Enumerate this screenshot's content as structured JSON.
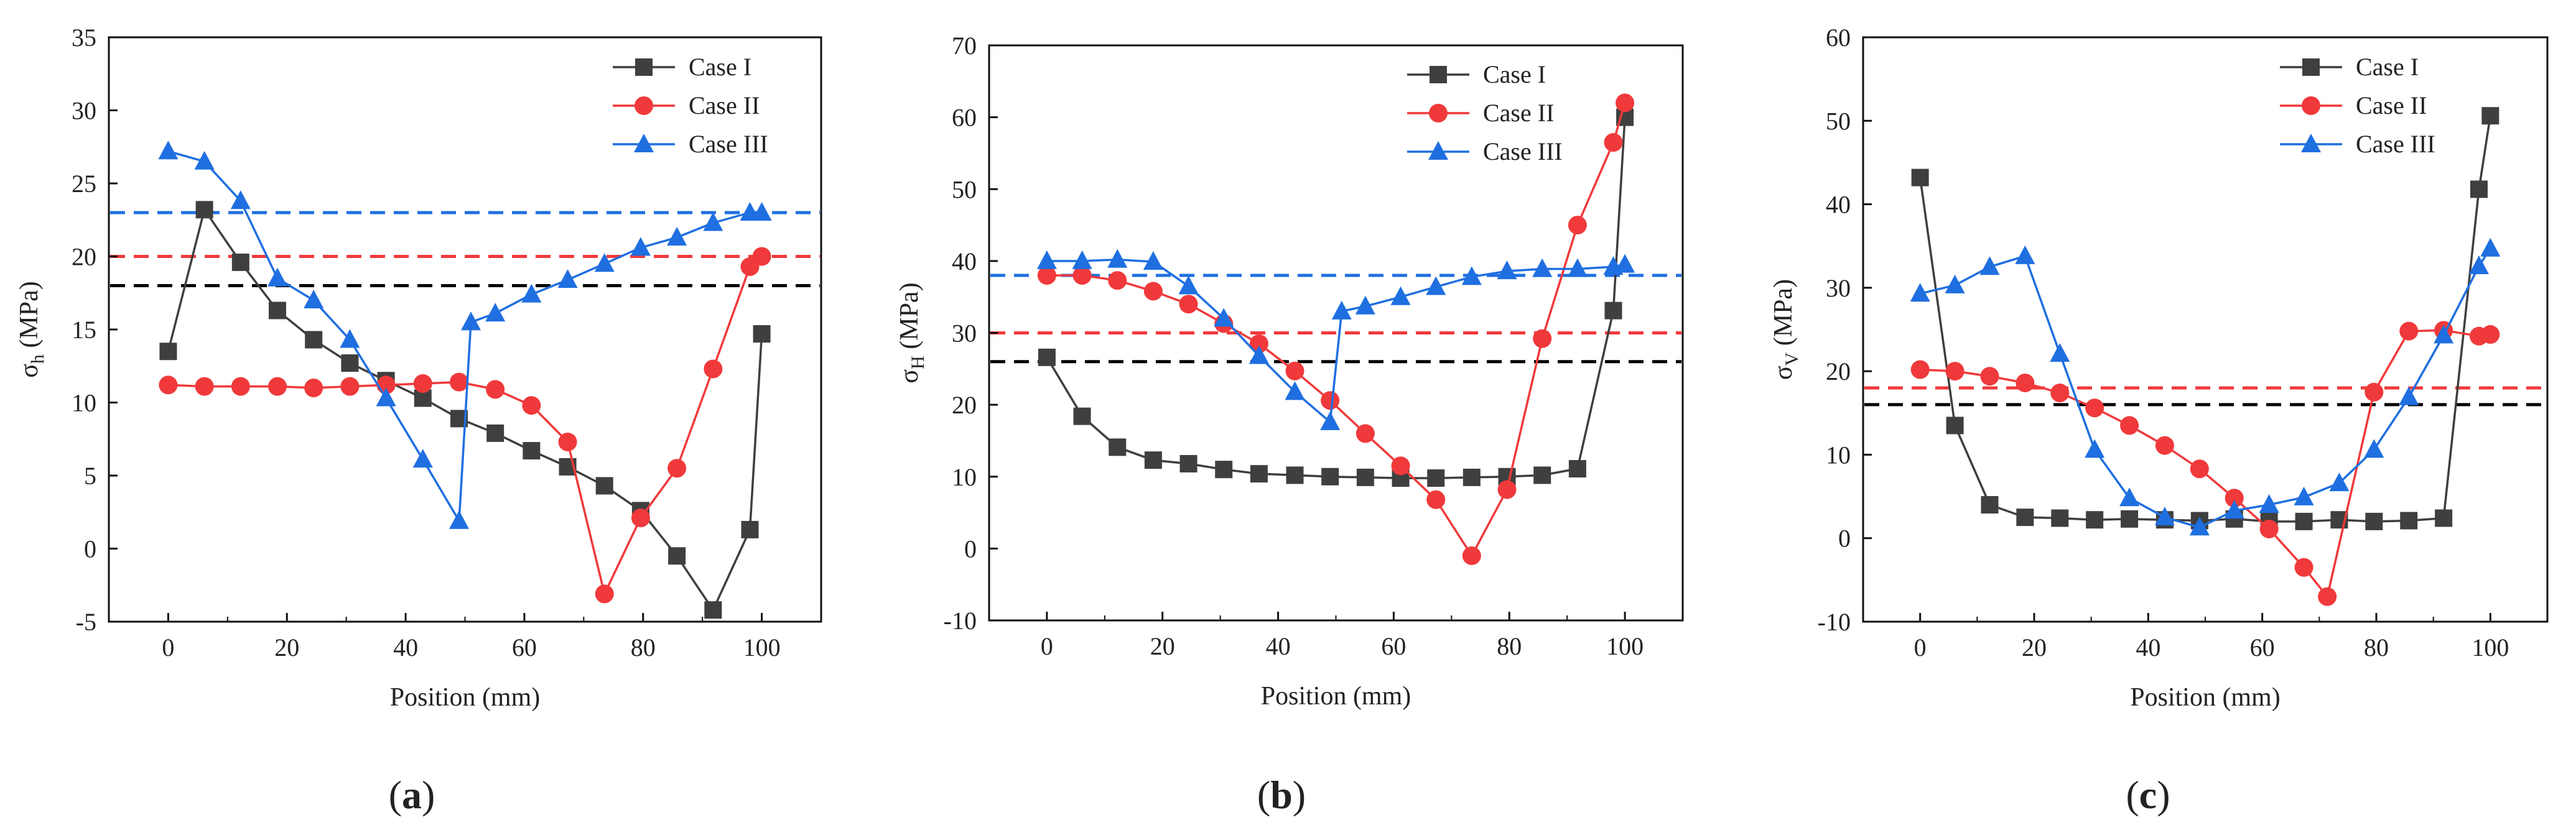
{
  "figure": {
    "panel_labels": [
      "a",
      "b",
      "c"
    ]
  },
  "chart_data": [
    {
      "type": "line",
      "panel": "a",
      "panel_label": "(a)",
      "xlabel": "Position (mm)",
      "ylabel_symbol": "σ",
      "ylabel_sub": "h",
      "ylabel_unit": "(MPa)",
      "xlim": [
        -10,
        110
      ],
      "ylim": [
        -5,
        35
      ],
      "xticks": [
        0,
        20,
        40,
        60,
        80,
        100
      ],
      "yticks": [
        -5,
        0,
        5,
        10,
        15,
        20,
        25,
        30,
        35
      ],
      "legend_position": "top-right",
      "series": [
        {
          "name": "Case I",
          "color": "#3f3f3f",
          "marker": "square",
          "x": [
            0,
            6.1,
            12.2,
            18.4,
            24.5,
            30.6,
            36.7,
            42.9,
            49,
            55.1,
            61.2,
            67.3,
            73.5,
            79.6,
            85.7,
            91.8,
            98,
            100
          ],
          "y": [
            13.5,
            23.2,
            19.6,
            16.3,
            14.3,
            12.7,
            11.5,
            10.3,
            8.9,
            7.9,
            6.7,
            5.6,
            4.3,
            2.6,
            -0.5,
            -4.2,
            1.3,
            14.7
          ]
        },
        {
          "name": "Case II",
          "color": "#f0393b",
          "marker": "circle",
          "x": [
            0,
            6.1,
            12.2,
            18.4,
            24.5,
            30.6,
            36.7,
            42.9,
            49,
            55.1,
            61.2,
            67.3,
            73.5,
            79.6,
            85.7,
            91.8,
            98,
            100
          ],
          "y": [
            11.2,
            11.1,
            11.1,
            11.1,
            11.0,
            11.1,
            11.2,
            11.3,
            11.4,
            10.9,
            9.8,
            7.3,
            -3.1,
            2.1,
            5.5,
            12.3,
            19.3,
            20.0
          ]
        },
        {
          "name": "Case III",
          "color": "#1f6fe0",
          "marker": "triangle",
          "x": [
            0,
            6.1,
            12.2,
            18.4,
            24.5,
            30.6,
            36.7,
            42.9,
            49,
            51,
            55.1,
            61.2,
            67.3,
            73.5,
            79.6,
            85.7,
            91.8,
            98,
            100
          ],
          "y": [
            27.2,
            26.5,
            23.8,
            18.5,
            17.0,
            14.3,
            10.3,
            6.1,
            1.9,
            15.5,
            16.1,
            17.4,
            18.4,
            19.5,
            20.6,
            21.3,
            22.3,
            23.0,
            23.0
          ]
        }
      ],
      "reference_lines": [
        {
          "y": 23,
          "color": "#1f6fe0"
        },
        {
          "y": 20,
          "color": "#f0393b"
        },
        {
          "y": 18,
          "color": "#000000"
        }
      ]
    },
    {
      "type": "line",
      "panel": "b",
      "panel_label": "(b)",
      "xlabel": "Position (mm)",
      "ylabel_symbol": "σ",
      "ylabel_sub": "H",
      "ylabel_unit": "(MPa)",
      "xlim": [
        -10,
        110
      ],
      "ylim": [
        -10,
        70
      ],
      "xticks": [
        0,
        20,
        40,
        60,
        80,
        100
      ],
      "yticks": [
        -10,
        0,
        10,
        20,
        30,
        40,
        50,
        60,
        70
      ],
      "legend_position": "top-right",
      "series": [
        {
          "name": "Case I",
          "color": "#3f3f3f",
          "marker": "square",
          "x": [
            0,
            6.1,
            12.2,
            18.4,
            24.5,
            30.6,
            36.7,
            42.9,
            49,
            55.1,
            61.2,
            67.3,
            73.5,
            79.6,
            85.7,
            91.8,
            98,
            100
          ],
          "y": [
            26.6,
            18.4,
            14.1,
            12.3,
            11.8,
            11.0,
            10.4,
            10.2,
            10.0,
            9.9,
            9.8,
            9.8,
            9.9,
            10.0,
            10.2,
            11.1,
            33.1,
            60.0
          ]
        },
        {
          "name": "Case II",
          "color": "#f0393b",
          "marker": "circle",
          "x": [
            0,
            6.1,
            12.2,
            18.4,
            24.5,
            30.6,
            36.7,
            42.9,
            49,
            55.1,
            61.2,
            67.3,
            73.5,
            79.6,
            85.7,
            91.8,
            98,
            100
          ],
          "y": [
            38.0,
            38.0,
            37.3,
            35.8,
            34.0,
            31.3,
            28.5,
            24.7,
            20.6,
            16.0,
            11.5,
            6.8,
            -1.0,
            8.2,
            29.2,
            45.0,
            56.5,
            62.0
          ]
        },
        {
          "name": "Case III",
          "color": "#1f6fe0",
          "marker": "triangle",
          "x": [
            0,
            6.1,
            12.2,
            18.4,
            24.5,
            30.6,
            36.7,
            42.9,
            49,
            51,
            55.1,
            61.2,
            67.3,
            73.5,
            79.6,
            85.7,
            91.8,
            98,
            100
          ],
          "y": [
            40.0,
            40.0,
            40.2,
            39.9,
            36.5,
            32.0,
            26.8,
            21.8,
            17.6,
            33.0,
            33.7,
            35.0,
            36.4,
            37.8,
            38.6,
            38.9,
            38.9,
            39.2,
            39.5
          ]
        }
      ],
      "reference_lines": [
        {
          "y": 38,
          "color": "#1f6fe0"
        },
        {
          "y": 30,
          "color": "#f0393b"
        },
        {
          "y": 26,
          "color": "#000000"
        }
      ]
    },
    {
      "type": "line",
      "panel": "c",
      "panel_label": "(c)",
      "xlabel": "Position (mm)",
      "ylabel_symbol": "σ",
      "ylabel_sub": "V",
      "ylabel_unit": "(MPa)",
      "xlim": [
        -10,
        110
      ],
      "ylim": [
        -10,
        60
      ],
      "xticks": [
        0,
        20,
        40,
        60,
        80,
        100
      ],
      "yticks": [
        -10,
        0,
        10,
        20,
        30,
        40,
        50,
        60
      ],
      "legend_position": "top-right",
      "series": [
        {
          "name": "Case I",
          "color": "#3f3f3f",
          "marker": "square",
          "x": [
            0,
            6.1,
            12.2,
            18.4,
            24.5,
            30.6,
            36.7,
            42.9,
            49,
            55.1,
            61.2,
            67.3,
            73.5,
            79.6,
            85.7,
            91.8,
            98,
            100
          ],
          "y": [
            43.2,
            13.5,
            4.0,
            2.5,
            2.4,
            2.2,
            2.3,
            2.2,
            2.1,
            2.3,
            2.0,
            2.0,
            2.2,
            2.0,
            2.1,
            2.4,
            41.8,
            50.6
          ]
        },
        {
          "name": "Case II",
          "color": "#f0393b",
          "marker": "circle",
          "x": [
            0,
            6.1,
            12.2,
            18.4,
            24.5,
            30.6,
            36.7,
            42.9,
            49,
            55.1,
            61.2,
            67.3,
            71.4,
            79.6,
            85.7,
            91.8,
            98,
            100
          ],
          "y": [
            20.2,
            20.0,
            19.4,
            18.6,
            17.4,
            15.6,
            13.5,
            11.1,
            8.3,
            4.8,
            1.1,
            -3.5,
            -7.0,
            17.5,
            24.8,
            24.9,
            24.2,
            24.4
          ]
        },
        {
          "name": "Case III",
          "color": "#1f6fe0",
          "marker": "triangle",
          "x": [
            0,
            6.1,
            12.2,
            18.4,
            24.5,
            30.6,
            36.7,
            42.9,
            49,
            55.1,
            61.2,
            67.3,
            73.5,
            79.6,
            85.7,
            91.8,
            98,
            100
          ],
          "y": [
            29.3,
            30.3,
            32.5,
            33.8,
            22.1,
            10.6,
            4.8,
            2.5,
            1.3,
            3.3,
            4.0,
            4.9,
            6.6,
            10.6,
            16.9,
            24.3,
            32.6,
            34.7
          ]
        }
      ],
      "reference_lines": [
        {
          "y": 18,
          "color": "#1f6fe0"
        },
        {
          "y": 18,
          "color": "#f0393b"
        },
        {
          "y": 16,
          "color": "#000000"
        }
      ]
    }
  ]
}
